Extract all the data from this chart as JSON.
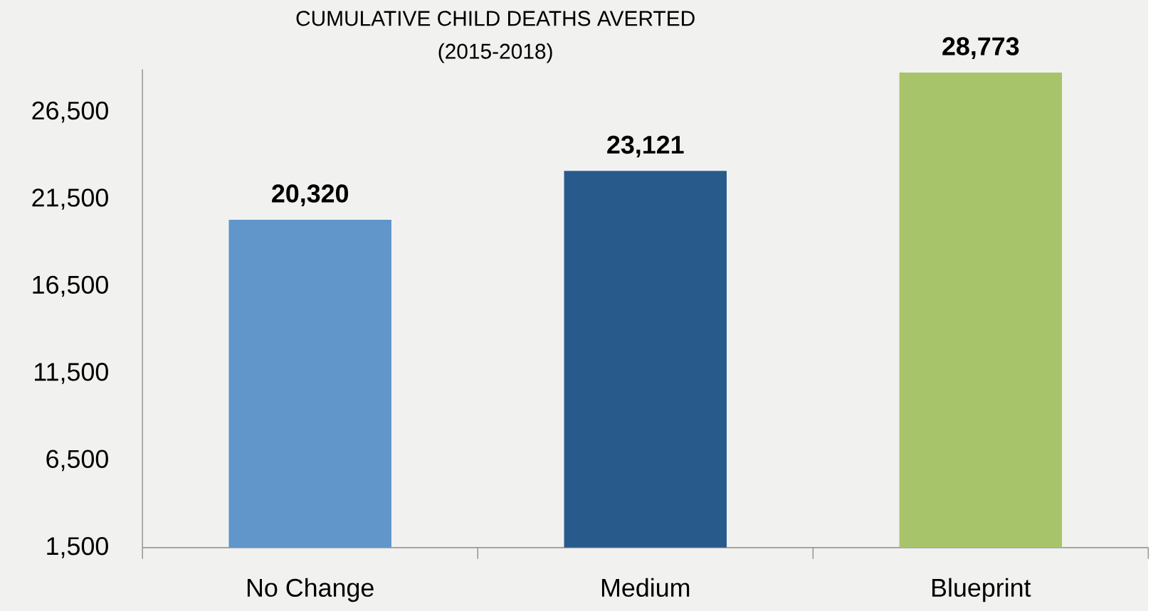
{
  "chart_data": {
    "type": "bar",
    "title": "CUMULATIVE CHILD DEATHS AVERTED",
    "subtitle": "(2015-2018)",
    "categories": [
      "No Change",
      "Medium",
      "Blueprint"
    ],
    "values": [
      20320,
      23121,
      28773
    ],
    "value_labels": [
      "20,320",
      "23,121",
      "28,773"
    ],
    "colors": [
      "#6096c9",
      "#285b8c",
      "#a8c46b"
    ],
    "ylim": [
      1500,
      28950
    ],
    "yticks": [
      {
        "value": 1500,
        "label": "1,500"
      },
      {
        "value": 6500,
        "label": "6,500"
      },
      {
        "value": 11500,
        "label": "11,500"
      },
      {
        "value": 16500,
        "label": "16,500"
      },
      {
        "value": 21500,
        "label": "21,500"
      },
      {
        "value": 26500,
        "label": "26,500"
      }
    ]
  }
}
